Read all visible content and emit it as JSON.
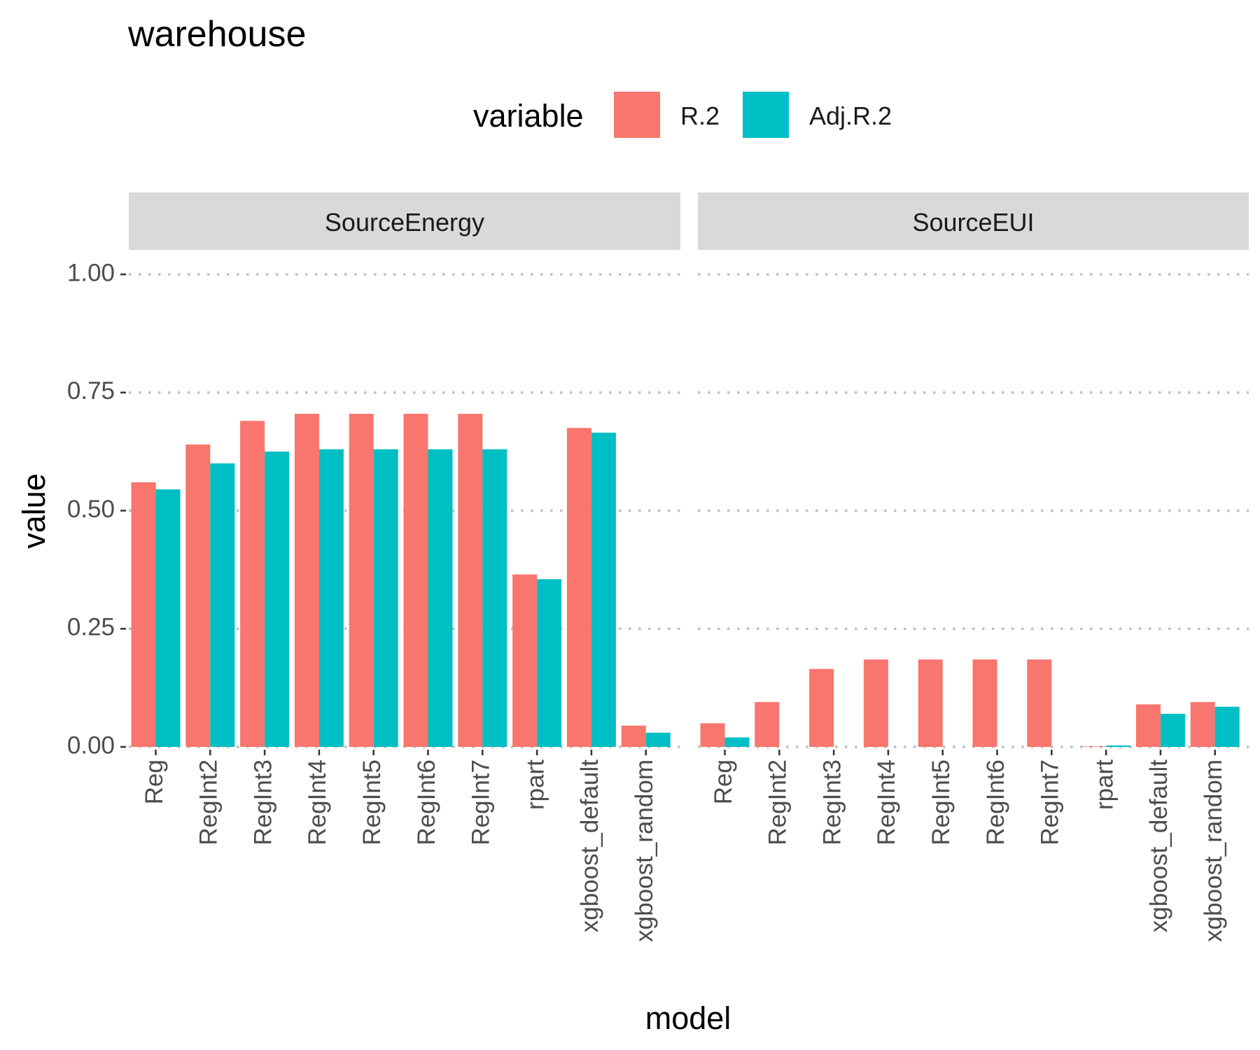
{
  "chart_data": {
    "type": "bar",
    "title": "warehouse",
    "xlabel": "model",
    "ylabel": "value",
    "ylim": [
      0,
      1
    ],
    "yticks": [
      "0.00",
      "0.25",
      "0.50",
      "0.75",
      "1.00"
    ],
    "grid": "horizontal dotted",
    "legend": {
      "title": "variable",
      "position": "top",
      "entries": [
        "R.2",
        "Adj.R.2"
      ]
    },
    "colors": {
      "R.2": "#F8766D",
      "Adj.R.2": "#00BFC4"
    },
    "categories": [
      "Reg",
      "RegInt2",
      "RegInt3",
      "RegInt4",
      "RegInt5",
      "RegInt6",
      "RegInt7",
      "rpart",
      "xgboost_default",
      "xgboost_random"
    ],
    "facets": [
      {
        "label": "SourceEnergy",
        "series": [
          {
            "name": "R.2",
            "values": [
              0.56,
              0.64,
              0.69,
              0.705,
              0.705,
              0.705,
              0.705,
              0.365,
              0.675,
              0.045
            ]
          },
          {
            "name": "Adj.R.2",
            "values": [
              0.545,
              0.6,
              0.625,
              0.63,
              0.63,
              0.63,
              0.63,
              0.355,
              0.665,
              0.03
            ]
          }
        ]
      },
      {
        "label": "SourceEUI",
        "series": [
          {
            "name": "R.2",
            "values": [
              0.05,
              0.095,
              0.165,
              0.185,
              0.185,
              0.185,
              0.185,
              0.0,
              0.09,
              0.095
            ]
          },
          {
            "name": "Adj.R.2",
            "values": [
              0.02,
              null,
              null,
              null,
              null,
              null,
              null,
              0.003,
              0.07,
              0.085
            ]
          }
        ]
      }
    ]
  }
}
